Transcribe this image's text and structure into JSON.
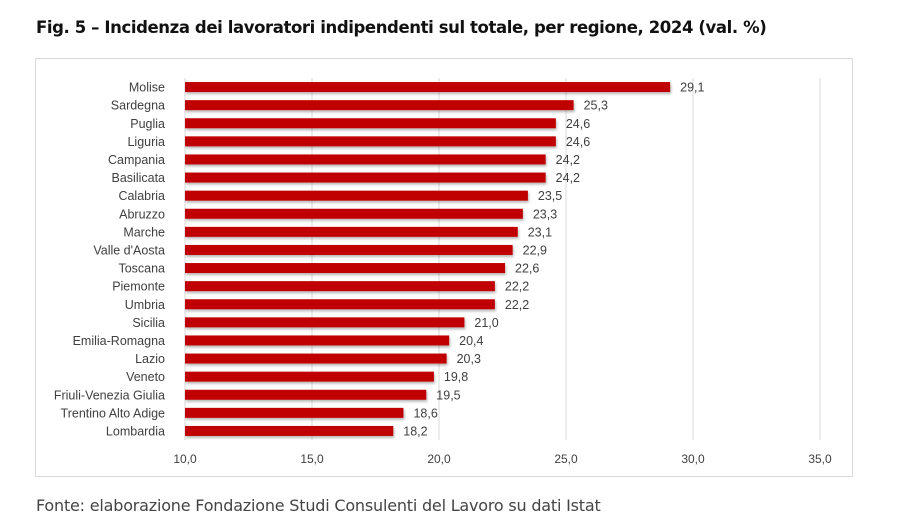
{
  "chart_data": {
    "type": "bar",
    "orientation": "horizontal",
    "title": "Fig. 5 – Incidenza dei lavoratori indipendenti sul totale, per regione, 2024 (val. %)",
    "categories": [
      "Molise",
      "Sardegna",
      "Puglia",
      "Liguria",
      "Campania",
      "Basilicata",
      "Calabria",
      "Abruzzo",
      "Marche",
      "Valle d'Aosta",
      "Toscana",
      "Piemonte",
      "Umbria",
      "Sicilia",
      "Emilia-Romagna",
      "Lazio",
      "Veneto",
      "Friuli-Venezia Giulia",
      "Trentino Alto Adige",
      "Lombardia"
    ],
    "values": [
      29.1,
      25.3,
      24.6,
      24.6,
      24.2,
      24.2,
      23.5,
      23.3,
      23.1,
      22.9,
      22.6,
      22.2,
      22.2,
      21.0,
      20.4,
      20.3,
      19.8,
      19.5,
      18.6,
      18.2
    ],
    "value_labels": [
      "29,1",
      "25,3",
      "24,6",
      "24,6",
      "24,2",
      "24,2",
      "23,5",
      "23,3",
      "23,1",
      "22,9",
      "22,6",
      "22,2",
      "22,2",
      "21,0",
      "20,4",
      "20,3",
      "19,8",
      "19,5",
      "18,6",
      "18,2"
    ],
    "xlim": [
      10,
      35
    ],
    "xticks": [
      10,
      15,
      20,
      25,
      30,
      35
    ],
    "xtick_labels": [
      "10,0",
      "15,0",
      "20,0",
      "25,0",
      "30,0",
      "35,0"
    ],
    "xlabel": "",
    "ylabel": "",
    "grid": true,
    "legend": "none",
    "bar_color": "#c00000",
    "source": "Fonte: elaborazione Fondazione Studi Consulenti del Lavoro su dati Istat"
  }
}
